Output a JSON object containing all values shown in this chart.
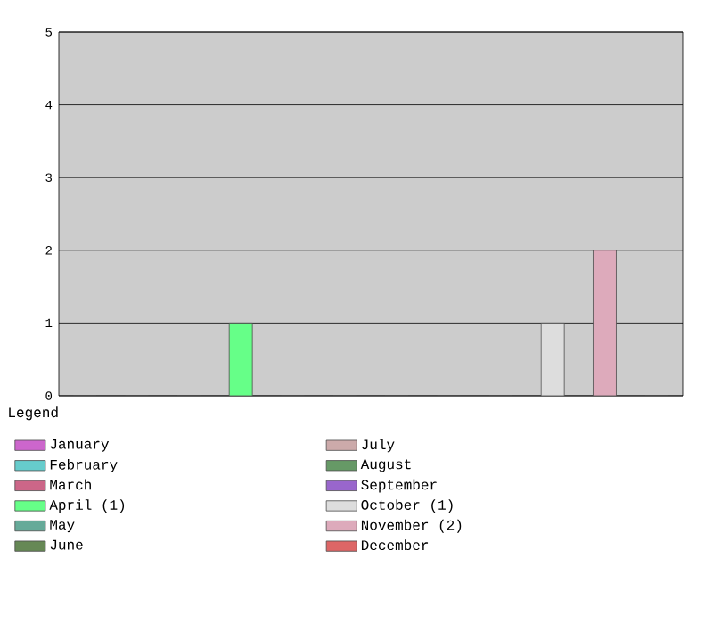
{
  "chart_data": {
    "type": "bar",
    "categories": [
      null,
      null,
      null,
      null,
      null,
      null,
      null,
      null,
      null,
      null,
      null,
      null
    ],
    "series": [
      {
        "name": "January",
        "color": "#cc66cc",
        "values": [
          0,
          null,
          null,
          null,
          null,
          null,
          null,
          null,
          null,
          null,
          null,
          null
        ]
      },
      {
        "name": "February",
        "color": "#66cccc",
        "values": [
          null,
          0,
          null,
          null,
          null,
          null,
          null,
          null,
          null,
          null,
          null,
          null
        ]
      },
      {
        "name": "March",
        "color": "#cc6688",
        "values": [
          null,
          null,
          0,
          null,
          null,
          null,
          null,
          null,
          null,
          null,
          null,
          null
        ]
      },
      {
        "name": "April (1)",
        "color": "#66ff88",
        "values": [
          null,
          null,
          null,
          1,
          null,
          null,
          null,
          null,
          null,
          null,
          null,
          null
        ]
      },
      {
        "name": "May",
        "color": "#66aa99",
        "values": [
          null,
          null,
          null,
          null,
          0,
          null,
          null,
          null,
          null,
          null,
          null,
          null
        ]
      },
      {
        "name": "June",
        "color": "#668855",
        "values": [
          null,
          null,
          null,
          null,
          null,
          0,
          null,
          null,
          null,
          null,
          null,
          null
        ]
      },
      {
        "name": "July",
        "color": "#ccaaaa",
        "values": [
          null,
          null,
          null,
          null,
          null,
          null,
          0,
          null,
          null,
          null,
          null,
          null
        ]
      },
      {
        "name": "August",
        "color": "#669966",
        "values": [
          null,
          null,
          null,
          null,
          null,
          null,
          null,
          0,
          null,
          null,
          null,
          null
        ]
      },
      {
        "name": "September",
        "color": "#9966cc",
        "values": [
          null,
          null,
          null,
          null,
          null,
          null,
          null,
          null,
          0,
          null,
          null,
          null
        ]
      },
      {
        "name": "October (1)",
        "color": "#dddddd",
        "values": [
          null,
          null,
          null,
          null,
          null,
          null,
          null,
          null,
          null,
          1,
          null,
          null
        ]
      },
      {
        "name": "November (2)",
        "color": "#ddaabb",
        "values": [
          null,
          null,
          null,
          null,
          null,
          null,
          null,
          null,
          null,
          null,
          2,
          null
        ]
      },
      {
        "name": "December",
        "color": "#dd6666",
        "values": [
          null,
          null,
          null,
          null,
          null,
          null,
          null,
          null,
          null,
          null,
          null,
          0
        ]
      }
    ],
    "ylim": [
      0,
      5
    ],
    "yticks": [
      0,
      1,
      2,
      3,
      4,
      5
    ],
    "grid": "y",
    "legend": "bottom",
    "legend_title": "Legend",
    "tick_labels": "y"
  }
}
